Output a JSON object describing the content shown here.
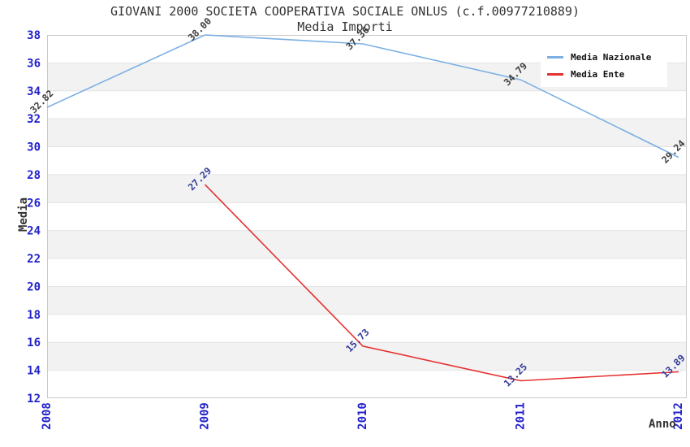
{
  "title": "GIOVANI 2000 SOCIETA COOPERATIVA SOCIALE ONLUS (c.f.00977210889)",
  "subtitle": "Media Importi",
  "axis": {
    "x_label": "Anno",
    "y_label": "Media"
  },
  "legend": {
    "position": "top-right",
    "items": [
      "Media Nazionale",
      "Media Ente"
    ]
  },
  "chart_data": {
    "type": "line",
    "x": [
      2008,
      2009,
      2010,
      2011,
      2012
    ],
    "xlabel": "Anno",
    "ylabel": "Media",
    "ylim": [
      12,
      38
    ],
    "ytick_step": 2,
    "grid": "alternating-horizontal-bands",
    "legend_position": "top-right",
    "series": [
      {
        "name": "Media Nazionale",
        "color": "#7cb0e4",
        "label_color": "#3c3c3c",
        "values": [
          32.82,
          38.0,
          37.36,
          34.79,
          29.24
        ]
      },
      {
        "name": "Media Ente",
        "color": "#e53030",
        "label_color": "#333a99",
        "values": [
          null,
          27.29,
          15.73,
          13.25,
          13.89
        ]
      }
    ]
  },
  "colors": {
    "tick_text": "#2222cc",
    "band": "#f2f2f2",
    "gridline": "#e4e4e4",
    "frame": "#c9c9c9",
    "text": "#333333",
    "background": "#ffffff"
  }
}
